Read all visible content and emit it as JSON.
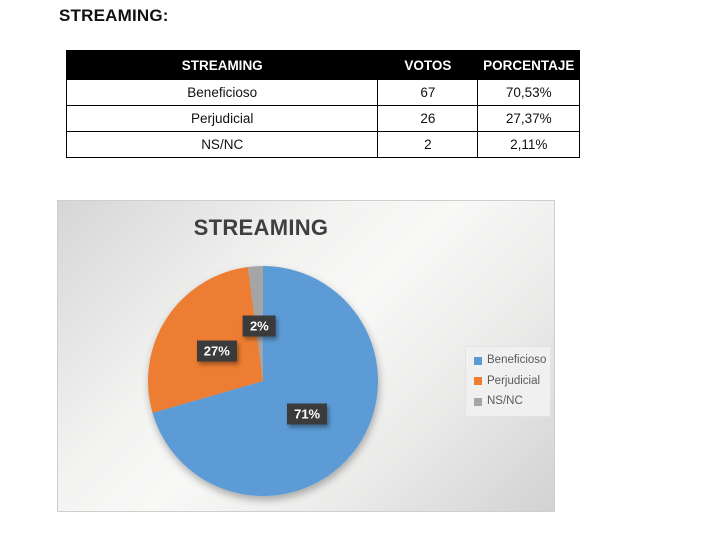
{
  "page": {
    "heading": "STREAMING:"
  },
  "table": {
    "columns": [
      "STREAMING",
      "VOTOS",
      "PORCENTAJE"
    ],
    "rows": [
      [
        "Beneficioso",
        "67",
        "70,53%"
      ],
      [
        "Perjudicial",
        "26",
        "27,37%"
      ],
      [
        "NS/NC",
        "2",
        "2,11%"
      ]
    ]
  },
  "chart_data": {
    "type": "pie",
    "title": "STREAMING",
    "categories": [
      "Beneficioso",
      "Perjudicial",
      "NS/NC"
    ],
    "values": [
      67,
      26,
      2
    ],
    "percentages": [
      70.53,
      27.37,
      2.11
    ],
    "slice_labels": [
      "71%",
      "27%",
      "2%"
    ],
    "colors": [
      "#5B9BD5",
      "#ED7D31",
      "#A5A5A5"
    ],
    "legend_position": "right",
    "start_angle_deg": 0,
    "direction": "clockwise",
    "label_style": {
      "bg": "#3B3B3B",
      "color": "#FFFFFF"
    }
  }
}
